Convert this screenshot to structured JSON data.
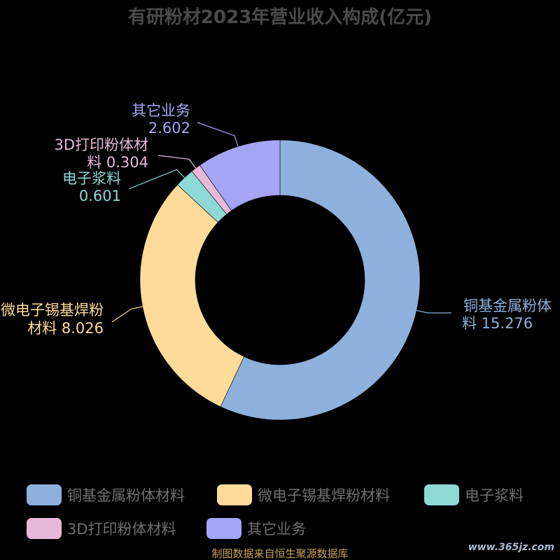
{
  "chart_data": {
    "type": "pie",
    "title": "有研粉材2023年营业收入构成(亿元)",
    "categories": [
      "铜基金属粉体材料",
      "微电子锡基焊粉材料",
      "电子浆料",
      "3D打印粉体材料",
      "其它业务"
    ],
    "values": [
      15.276,
      8.026,
      0.601,
      0.304,
      2.602
    ],
    "colors": [
      "#8eb0dc",
      "#fedb99",
      "#8dd9d6",
      "#e8b8d8",
      "#a5a5f5"
    ],
    "labels": [
      [
        "铜基金属粉体",
        "料 15.276"
      ],
      [
        "微电子锡基焊粉",
        "材料 8.026"
      ],
      [
        "电子浆料",
        "0.601"
      ],
      [
        "3D打印粉体材",
        "料 0.304"
      ],
      [
        "其它业务",
        "2.602"
      ]
    ],
    "legend": [
      "铜基金属粉体材料",
      "微电子锡基焊粉材料",
      "电子浆料",
      "3D打印粉体材料",
      "其它业务"
    ],
    "legend_position": "bottom"
  },
  "source": "制图数据来自恒生聚源数据库",
  "watermark": "www.365jz.com"
}
